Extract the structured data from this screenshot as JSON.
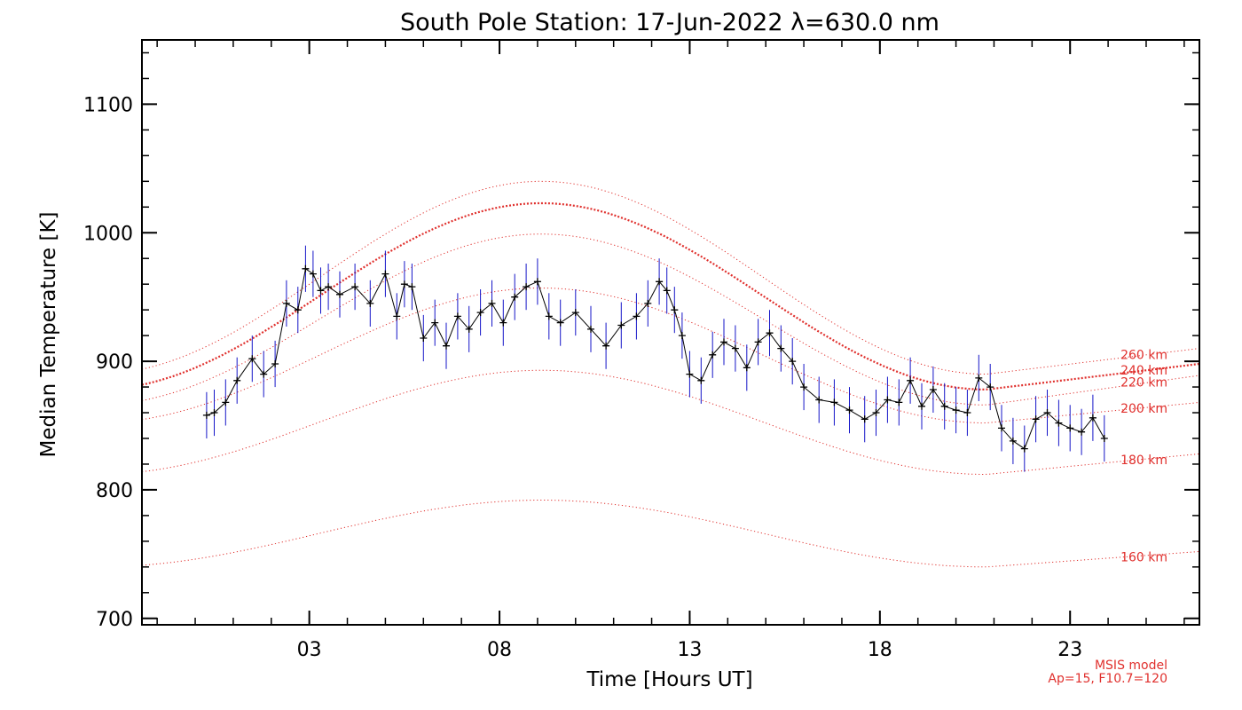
{
  "chart_data": {
    "type": "line",
    "title": "South Pole Station: 17-Jun-2022 λ=630.0 nm",
    "xlabel": "Time [Hours UT]",
    "ylabel": "Median Temperature [K]",
    "xlim": [
      -1.4,
      26.4
    ],
    "ylim": [
      695,
      1150
    ],
    "xticks": [
      3,
      8,
      13,
      18,
      23
    ],
    "xtick_labels": [
      "03",
      "08",
      "13",
      "18",
      "23"
    ],
    "yticks": [
      700,
      800,
      900,
      1000,
      1100
    ],
    "ytick_labels": [
      "700",
      "800",
      "900",
      "1000",
      "1100"
    ],
    "grid": false,
    "legend": "none",
    "colors": {
      "measurement": "#000000",
      "error_bars": "#1515c8",
      "model": "#e0302d"
    },
    "series": [
      {
        "name": "",
        "error": 18,
        "x": [
          0.3,
          0.5,
          0.8,
          1.1,
          1.5,
          1.8,
          2.1,
          2.4,
          2.7,
          2.9,
          3.1,
          3.3,
          3.5,
          3.8,
          4.2,
          4.6,
          5.0,
          5.3,
          5.5,
          5.7,
          6.0,
          6.3,
          6.6,
          6.9,
          7.2,
          7.5,
          7.8,
          8.1,
          8.4,
          8.7,
          9.0,
          9.3,
          9.6,
          10.0,
          10.4,
          10.8,
          11.2,
          11.6,
          11.9,
          12.2,
          12.4,
          12.6,
          12.8,
          13.0,
          13.3,
          13.6,
          13.9,
          14.2,
          14.5,
          14.8,
          15.1,
          15.4,
          15.7,
          16.0,
          16.4,
          16.8,
          17.2,
          17.6,
          17.9,
          18.2,
          18.5,
          18.8,
          19.1,
          19.4,
          19.7,
          20.0,
          20.3,
          20.6,
          20.9,
          21.2,
          21.5,
          21.8,
          22.1,
          22.4,
          22.7,
          23.0,
          23.3,
          23.6,
          23.9
        ],
        "y": [
          858,
          860,
          868,
          885,
          902,
          890,
          898,
          945,
          940,
          972,
          968,
          955,
          958,
          952,
          958,
          945,
          968,
          935,
          960,
          958,
          918,
          930,
          912,
          935,
          925,
          938,
          945,
          930,
          950,
          958,
          962,
          935,
          930,
          938,
          925,
          912,
          928,
          935,
          945,
          962,
          955,
          940,
          920,
          890,
          885,
          905,
          915,
          910,
          895,
          915,
          922,
          910,
          900,
          880,
          870,
          868,
          862,
          855,
          860,
          870,
          868,
          885,
          865,
          878,
          865,
          862,
          860,
          887,
          880,
          848,
          838,
          832,
          855,
          860,
          852,
          848,
          845,
          856,
          840
        ]
      }
    ],
    "model": {
      "name": "MSIS model",
      "params": "Ap=15, F10.7=120",
      "curves": [
        {
          "label": "260 km",
          "x": [
            -1.4,
            9.1,
            20.8,
            26.4
          ],
          "y": [
            900,
            1040,
            890,
            910
          ]
        },
        {
          "label": "240 km",
          "x": [
            -1.4,
            9.1,
            20.8,
            26.4
          ],
          "y": [
            887,
            1023,
            878,
            898
          ]
        },
        {
          "label": "220 km",
          "x": [
            -1.4,
            9.1,
            20.8,
            26.4
          ],
          "y": [
            877,
            999,
            866,
            889
          ]
        },
        {
          "label": "200 km",
          "x": [
            -1.4,
            9.1,
            20.8,
            26.4
          ],
          "y": [
            856,
            957,
            852,
            868
          ]
        },
        {
          "label": "180 km",
          "x": [
            -1.4,
            9.1,
            20.8,
            26.4
          ],
          "y": [
            818,
            893,
            812,
            828
          ]
        },
        {
          "label": "160 km",
          "x": [
            -1.4,
            9.1,
            20.8,
            26.4
          ],
          "y": [
            745,
            792,
            740,
            752
          ]
        }
      ]
    }
  }
}
